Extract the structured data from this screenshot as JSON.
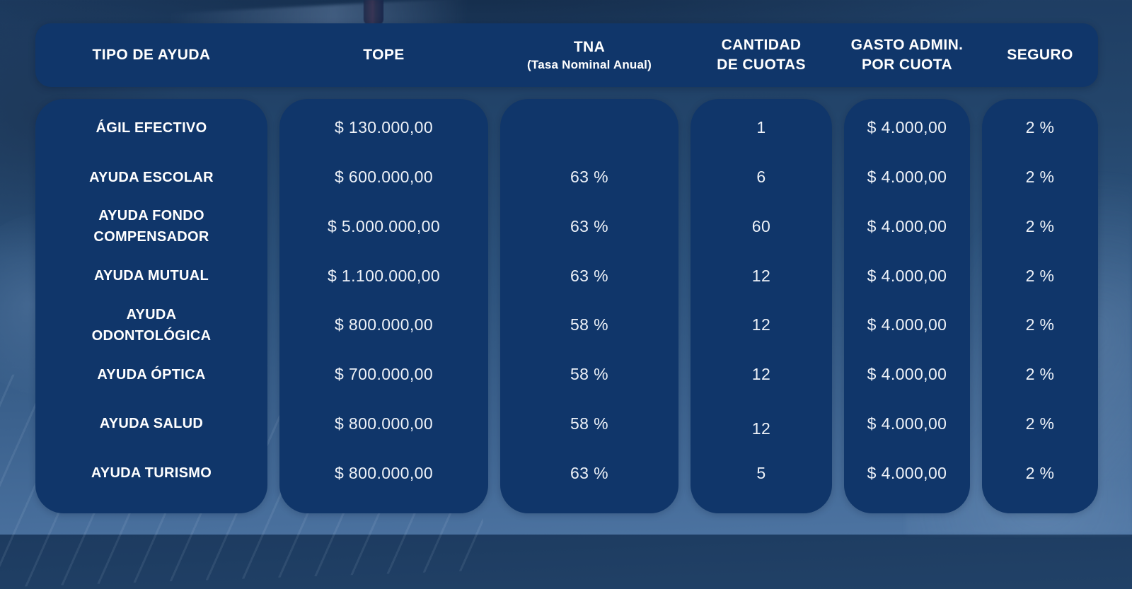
{
  "theme": {
    "pill_color": "#10366a",
    "header_text_color": "#ffffff",
    "value_text_color": "#eef2f8",
    "background_top": "#1d3b60",
    "background_bottom": "#4d74a2"
  },
  "table": {
    "header": {
      "tipo": {
        "line1": "TIPO DE AYUDA"
      },
      "tope": {
        "line1": "TOPE"
      },
      "tna": {
        "line1": "TNA",
        "line2": "(Tasa Nominal Anual)"
      },
      "cuotas": {
        "line1": "CANTIDAD",
        "line2": "DE CUOTAS"
      },
      "gasto": {
        "line1": "GASTO ADMIN.",
        "line2": "POR CUOTA"
      },
      "seguro": {
        "line1": "SEGURO"
      }
    },
    "rows": [
      {
        "tipo": "ÁGIL EFECTIVO",
        "tope": "$ 130.000,00",
        "tna": "",
        "cuotas": "1",
        "gasto": "$ 4.000,00",
        "seguro": "2 %"
      },
      {
        "tipo": "AYUDA ESCOLAR",
        "tope": "$ 600.000,00",
        "tna": "63 %",
        "cuotas": "6",
        "gasto": "$ 4.000,00",
        "seguro": "2 %"
      },
      {
        "tipo": "AYUDA FONDO COMPENSADOR",
        "tope": "$ 5.000.000,00",
        "tna": "63 %",
        "cuotas": "60",
        "gasto": "$ 4.000,00",
        "seguro": "2 %"
      },
      {
        "tipo": "AYUDA MUTUAL",
        "tope": "$ 1.100.000,00",
        "tna": "63 %",
        "cuotas": "12",
        "gasto": "$ 4.000,00",
        "seguro": "2 %"
      },
      {
        "tipo": "AYUDA ODONTOLÓGICA",
        "tope": "$ 800.000,00",
        "tna": "58 %",
        "cuotas": "12",
        "gasto": "$ 4.000,00",
        "seguro": "2 %"
      },
      {
        "tipo": "AYUDA ÓPTICA",
        "tope": "$ 700.000,00",
        "tna": "58 %",
        "cuotas": "12",
        "gasto": "$ 4.000,00",
        "seguro": "2 %"
      },
      {
        "tipo": "AYUDA SALUD",
        "tope": "$ 800.000,00",
        "tna": "58 %",
        "cuotas": "12",
        "gasto": "$ 4.000,00",
        "seguro": "2 %"
      },
      {
        "tipo": "AYUDA TURISMO",
        "tope": "$ 800.000,00",
        "tna": "63 %",
        "cuotas": "5",
        "gasto": "$ 4.000,00",
        "seguro": "2 %"
      }
    ]
  }
}
